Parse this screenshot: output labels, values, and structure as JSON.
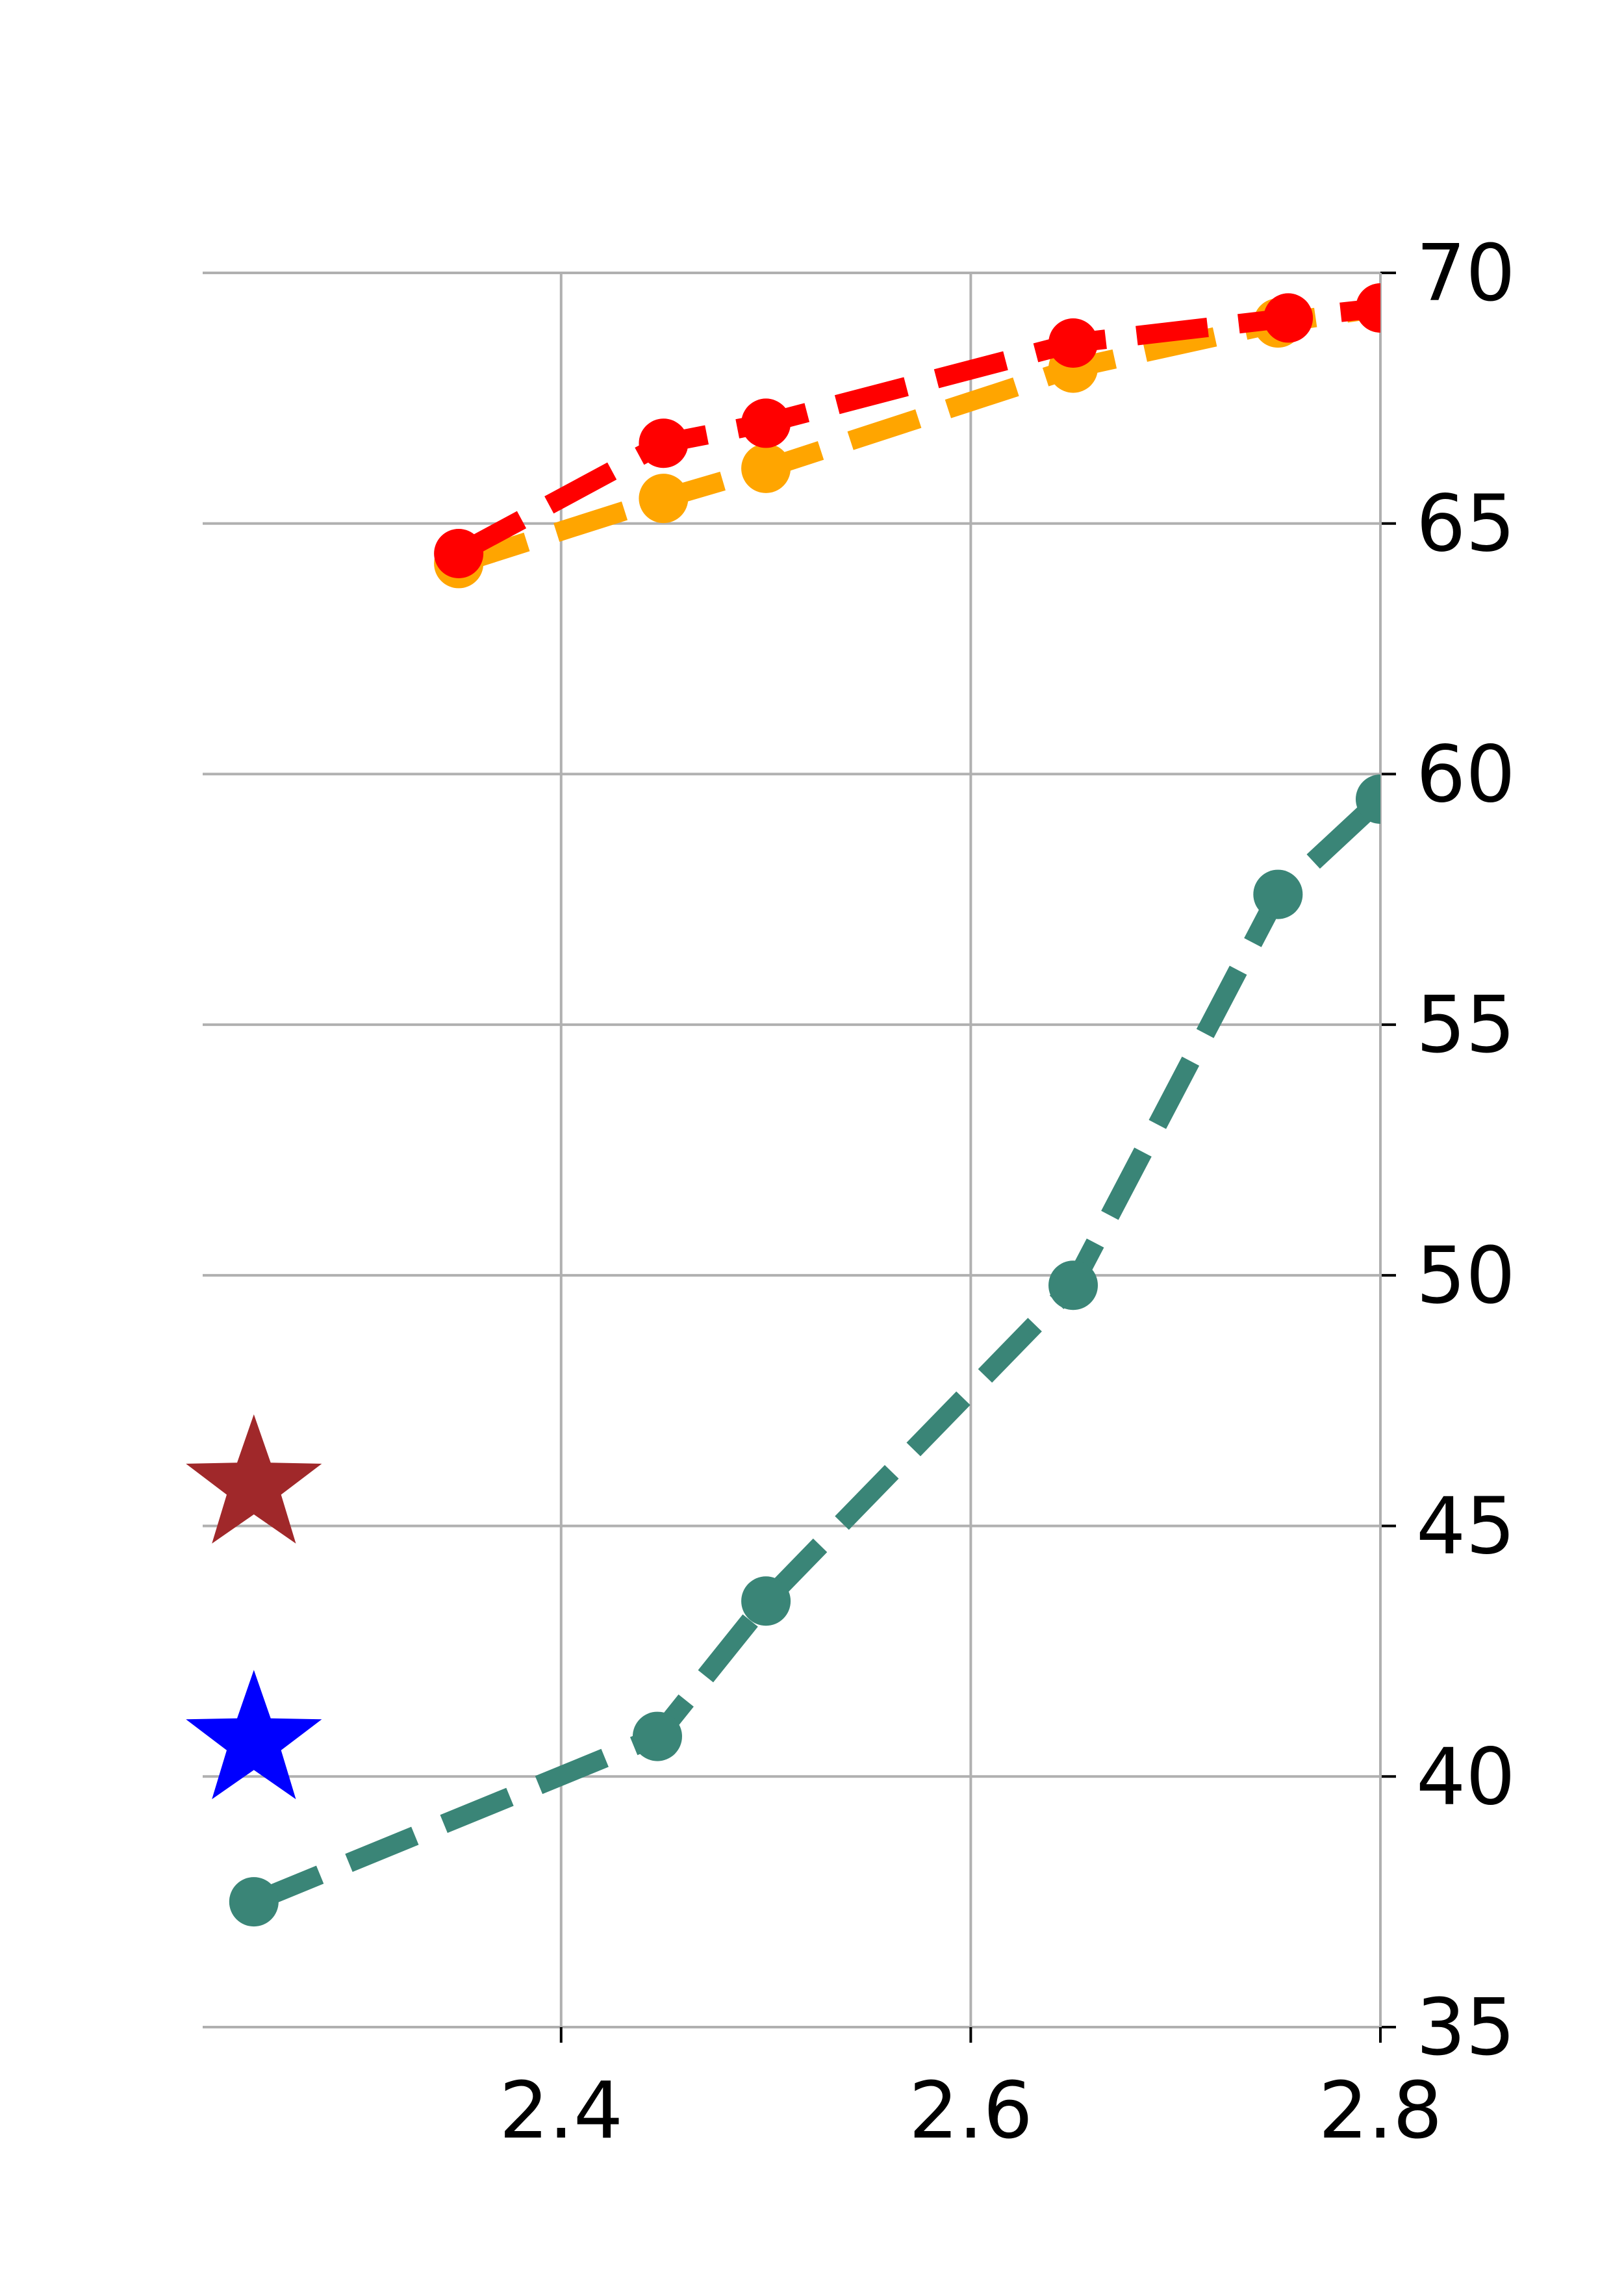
{
  "chart_data": {
    "type": "line",
    "title": "",
    "xlabel": "",
    "ylabel": "",
    "xlim": [
      2.225,
      2.8
    ],
    "ylim": [
      35,
      70
    ],
    "grid": true,
    "y_axis_side": "right",
    "x_ticks": [
      {
        "value": 2.4,
        "label": "2.4"
      },
      {
        "value": 2.6,
        "label": "2.6"
      },
      {
        "value": 2.8,
        "label": "2.8"
      }
    ],
    "y_ticks": [
      {
        "value": 35,
        "label": "35"
      },
      {
        "value": 40,
        "label": "40"
      },
      {
        "value": 45,
        "label": "45"
      },
      {
        "value": 50,
        "label": "50"
      },
      {
        "value": 55,
        "label": "55"
      },
      {
        "value": 60,
        "label": "60"
      },
      {
        "value": 65,
        "label": "65"
      },
      {
        "value": 70,
        "label": "70"
      }
    ],
    "series": [
      {
        "color": "#FFA500",
        "points": [
          [
            2.35,
            64.2
          ],
          [
            2.45,
            65.5
          ],
          [
            2.5,
            66.1
          ],
          [
            2.65,
            68.1
          ],
          [
            2.75,
            69.0
          ],
          [
            2.8,
            69.3
          ]
        ]
      },
      {
        "color": "#FF0000",
        "points": [
          [
            2.35,
            64.4
          ],
          [
            2.45,
            66.6
          ],
          [
            2.5,
            67.0
          ],
          [
            2.65,
            68.6
          ],
          [
            2.755,
            69.1
          ],
          [
            2.8,
            69.3
          ]
        ]
      },
      {
        "color": "#3A8577",
        "points": [
          [
            2.25,
            37.5
          ],
          [
            2.447,
            40.8
          ],
          [
            2.5,
            43.5
          ],
          [
            2.65,
            49.8
          ],
          [
            2.75,
            57.6
          ],
          [
            2.8,
            59.5
          ]
        ]
      }
    ],
    "markers": [
      {
        "shape": "star",
        "color": "#A0282A",
        "x": 2.25,
        "y": 45.8
      },
      {
        "shape": "star",
        "color": "#0000FF",
        "x": 2.25,
        "y": 40.7
      }
    ]
  }
}
